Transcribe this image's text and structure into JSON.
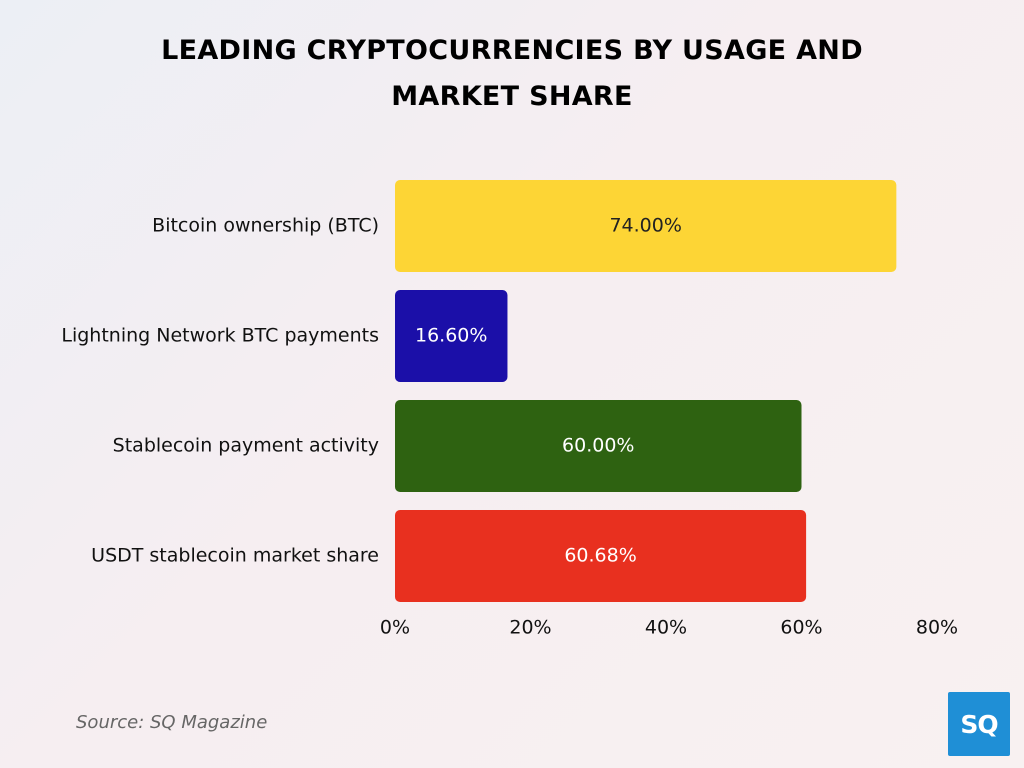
{
  "title": {
    "line1": "LEADING CRYPTOCURRENCIES BY USAGE AND",
    "line2": "MARKET SHARE"
  },
  "source": "Source: SQ Magazine",
  "logo_text": "SQ",
  "colors": {
    "logo_bg": "#1f8fd6"
  },
  "chart_data": {
    "type": "bar",
    "orientation": "horizontal",
    "categories": [
      "Bitcoin ownership (BTC)",
      "Lightning Network BTC payments",
      "Stablecoin payment activity",
      "USDT stablecoin market share"
    ],
    "values": [
      74.0,
      16.6,
      60.0,
      60.68
    ],
    "data_labels": [
      "74.00%",
      "16.60%",
      "60.00%",
      "60.68%"
    ],
    "bar_colors": [
      "#fdd535",
      "#1b0fa8",
      "#2e6211",
      "#e8301f"
    ],
    "label_colors": [
      "#222222",
      "#ffffff",
      "#ffffff",
      "#ffffff"
    ],
    "xlim": [
      0,
      80
    ],
    "x_ticks": [
      0,
      20,
      40,
      60,
      80
    ],
    "x_tick_labels": [
      "0%",
      "20%",
      "40%",
      "60%",
      "80%"
    ],
    "grid": false,
    "legend": "none"
  }
}
